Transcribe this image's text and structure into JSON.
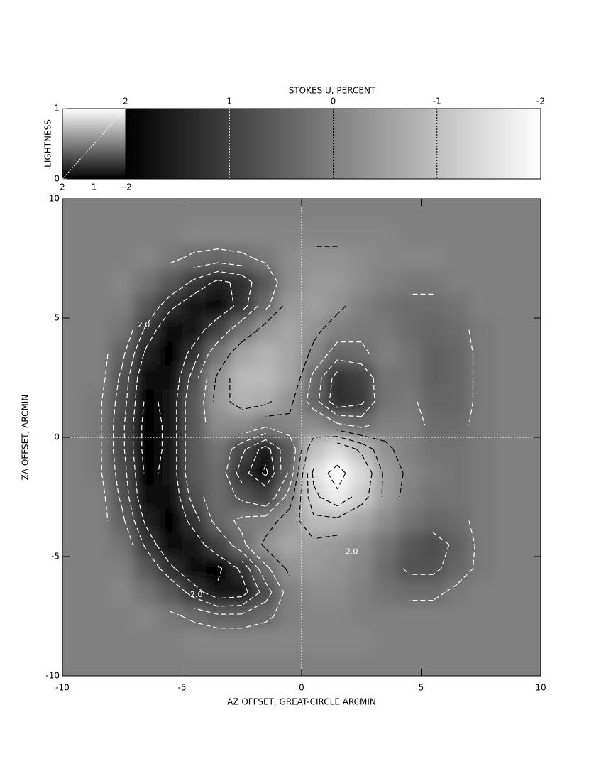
{
  "chart_data": {
    "type": "image",
    "colorbar": {
      "title": "STOKES U, PERCENT",
      "clim": [
        2,
        -2
      ],
      "ticks": [
        2,
        1,
        0,
        -1,
        -2
      ]
    },
    "lightness": {
      "ylabel": "LIGHTNESS",
      "ylim": [
        0,
        1
      ],
      "yticks": [
        0,
        1
      ],
      "xtick_labels": [
        "2",
        "1",
        "−2"
      ]
    },
    "xlabel": "AZ OFFSET, GREAT-CIRCLE ARCMIN",
    "ylabel": "ZA OFFSET, ARCMIN",
    "xlim": [
      -10,
      10
    ],
    "ylim": [
      -10,
      10
    ],
    "xticks": [
      -10,
      -5,
      0,
      5,
      10
    ],
    "yticks": [
      -10,
      -5,
      0,
      5,
      10
    ],
    "x": [
      -9.5,
      -8.5,
      -7.5,
      -6.5,
      -5.5,
      -4.5,
      -3.5,
      -2.5,
      -1.5,
      -0.5,
      0.5,
      1.5,
      2.5,
      3.5,
      4.5,
      5.5,
      6.5,
      7.5,
      8.5,
      9.5
    ],
    "y": [
      9.5,
      8.5,
      7.5,
      6.5,
      5.5,
      4.5,
      3.5,
      2.5,
      1.5,
      0.5,
      -0.5,
      -1.5,
      -2.5,
      -3.5,
      -4.5,
      -5.5,
      -6.5,
      -7.5,
      -8.5,
      -9.5
    ],
    "z": [
      [
        0,
        0,
        0,
        0,
        0,
        0,
        0,
        0,
        0,
        0,
        0,
        0,
        0,
        0,
        0,
        0,
        0,
        0,
        0,
        0
      ],
      [
        0,
        0,
        0,
        0,
        0,
        -0.1,
        -0.1,
        -0.1,
        -0.1,
        -0.1,
        -0.1,
        -0.1,
        -0.1,
        -0.1,
        0,
        0,
        0,
        0,
        0,
        0
      ],
      [
        0,
        0,
        0,
        -0.1,
        0.1,
        0.3,
        0.4,
        0.3,
        0.1,
        -0.2,
        -0.3,
        -0.3,
        -0.2,
        -0.1,
        -0.1,
        -0.1,
        0,
        0,
        0,
        0
      ],
      [
        0,
        0,
        -0.1,
        0.2,
        0.6,
        1.1,
        1.5,
        1.3,
        0.6,
        -0.2,
        -0.4,
        -0.4,
        -0.2,
        0,
        0.1,
        0.1,
        0,
        0,
        0,
        0
      ],
      [
        0,
        0,
        0,
        0.6,
        1.3,
        1.7,
        1.8,
        1.2,
        0.3,
        -0.4,
        -0.5,
        -0.3,
        0,
        0.2,
        0.3,
        0.3,
        0.2,
        0,
        0,
        0
      ],
      [
        0,
        0,
        0.2,
        1.1,
        1.8,
        1.7,
        1.0,
        0.2,
        -0.4,
        -0.6,
        -0.3,
        0,
        0.1,
        0.1,
        0.3,
        0.4,
        0.3,
        0.1,
        0,
        0
      ],
      [
        0,
        0,
        0.5,
        1.5,
        1.9,
        1.2,
        0.2,
        -0.6,
        -0.8,
        -0.6,
        -0.1,
        0.4,
        0.3,
        0,
        0.2,
        0.5,
        0.4,
        0.1,
        0,
        0
      ],
      [
        0,
        0,
        0.7,
        1.8,
        1.8,
        0.8,
        -0.3,
        -0.9,
        -0.9,
        -0.6,
        0.3,
        1.2,
        1.0,
        0.2,
        0.2,
        0.5,
        0.4,
        0.1,
        0,
        0
      ],
      [
        0,
        0.1,
        0.8,
        1.9,
        1.7,
        0.6,
        -0.4,
        -0.8,
        -0.7,
        -0.3,
        0.4,
        1.3,
        1.1,
        0.2,
        0.1,
        0.4,
        0.4,
        0.1,
        0,
        0
      ],
      [
        0,
        0.1,
        0.9,
        2.0,
        1.7,
        0.6,
        -0.2,
        -0.2,
        0.1,
        -0.1,
        -0.2,
        0.1,
        0.3,
        0,
        0,
        0.3,
        0.3,
        0.1,
        0,
        0
      ],
      [
        0,
        0.1,
        0.9,
        2.0,
        1.7,
        0.6,
        0.2,
        0.9,
        1.6,
        0.6,
        -1.0,
        -1.4,
        -0.9,
        -0.3,
        0,
        0.2,
        0.2,
        0.1,
        0,
        0
      ],
      [
        0,
        0.1,
        0.8,
        1.9,
        1.7,
        0.6,
        0.3,
        1.2,
        1.9,
        0.5,
        -1.5,
        -2.0,
        -1.4,
        -0.5,
        -0.1,
        0.1,
        0.2,
        0.1,
        0,
        0
      ],
      [
        0,
        0,
        0.7,
        1.8,
        1.8,
        0.8,
        0.3,
        0.7,
        1.0,
        0,
        -1.3,
        -1.7,
        -1.2,
        -0.5,
        0,
        0.2,
        0.2,
        0.1,
        0,
        0
      ],
      [
        0,
        0,
        0.5,
        1.5,
        1.9,
        1.2,
        0.4,
        0.1,
        0,
        -0.4,
        -0.9,
        -0.9,
        -0.6,
        -0.2,
        0.2,
        0.4,
        0.3,
        0.1,
        0,
        0
      ],
      [
        0,
        0,
        0.2,
        1.1,
        1.8,
        1.7,
        1.0,
        0.3,
        -0.3,
        -0.6,
        -0.5,
        -0.4,
        -0.2,
        0.2,
        0.6,
        0.8,
        0.5,
        0.1,
        0,
        0
      ],
      [
        0,
        0,
        0,
        0.6,
        1.3,
        1.8,
        1.9,
        1.3,
        0.3,
        -0.3,
        -0.4,
        -0.3,
        -0.1,
        0.3,
        0.7,
        0.7,
        0.4,
        0.1,
        0,
        0
      ],
      [
        0,
        0,
        -0.1,
        0.2,
        0.6,
        1.2,
        1.7,
        1.6,
        0.8,
        0,
        -0.2,
        -0.2,
        0,
        0.2,
        0.3,
        0.3,
        0.1,
        0,
        0,
        0
      ],
      [
        0,
        0,
        0,
        -0.1,
        0.1,
        0.3,
        0.5,
        0.5,
        0.3,
        0,
        -0.1,
        -0.1,
        0,
        0,
        0,
        0,
        0,
        0,
        0,
        0
      ],
      [
        0,
        0,
        0,
        0,
        0,
        -0.1,
        -0.1,
        -0.1,
        -0.1,
        -0.1,
        -0.1,
        -0.1,
        -0.1,
        0,
        0,
        0,
        0,
        0,
        0,
        0
      ],
      [
        0,
        0,
        0,
        0,
        0,
        0,
        0,
        0,
        0,
        0,
        0,
        0,
        0,
        0,
        0,
        0,
        0,
        0,
        0,
        0
      ]
    ],
    "contour_levels": [
      -1.8,
      -1.4,
      -1.0,
      -0.6,
      -0.2,
      0.2,
      0.6,
      1.0,
      1.4,
      1.8
    ],
    "annotations": [
      {
        "text": "2.0",
        "x": -6.6,
        "y": 4.7
      },
      {
        "text": "2.0",
        "x": -4.4,
        "y": -6.6
      },
      {
        "text": "2.0",
        "x": 2.1,
        "y": -4.8
      }
    ]
  }
}
